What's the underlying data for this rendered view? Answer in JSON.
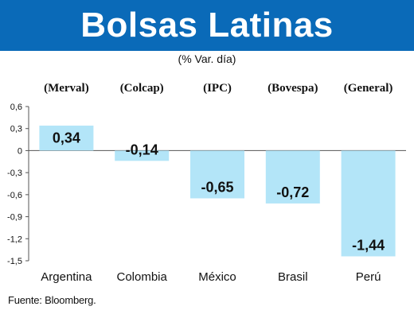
{
  "header": {
    "title": "Bolsas Latinas",
    "subtitle": "(% Var. día)"
  },
  "source": "Fuente: Bloomberg.",
  "colors": {
    "banner": "#0a6ab8",
    "bar": "#b3e5f8",
    "axis": "#555555",
    "grid": "#cccccc"
  },
  "chart_data": {
    "type": "bar",
    "title": "Bolsas Latinas",
    "subtitle": "(% Var. día)",
    "categories": [
      "Argentina",
      "Colombia",
      "México",
      "Brasil",
      "Perú"
    ],
    "indices": [
      "(Merval)",
      "(Colcap)",
      "(IPC)",
      "(Bovespa)",
      "(General)"
    ],
    "values": [
      0.34,
      -0.14,
      -0.65,
      -0.72,
      -1.44
    ],
    "value_labels": [
      "0,34",
      "-0,14",
      "-0,65",
      "-0,72",
      "-1,44"
    ],
    "yticks": [
      0.6,
      0.3,
      0,
      -0.3,
      -0.6,
      -0.9,
      -1.2,
      -1.5
    ],
    "ytick_labels": [
      "0,6",
      "0,3",
      "0",
      "-0,3",
      "-0,6",
      "-0,9",
      "-1,2",
      "-1,5"
    ],
    "ylim": [
      -1.5,
      0.6
    ],
    "xlabel": "",
    "ylabel": "",
    "grid": false
  }
}
